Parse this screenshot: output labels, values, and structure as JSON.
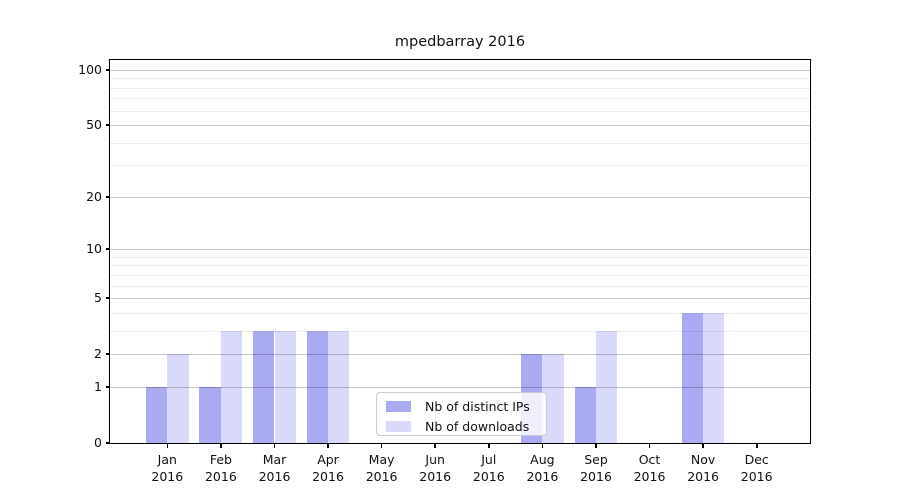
{
  "title": "mpedbarray 2016",
  "chart_data": {
    "type": "bar",
    "title": "mpedbarray 2016",
    "x_ticks": [
      {
        "month": "Jan",
        "year": "2016"
      },
      {
        "month": "Feb",
        "year": "2016"
      },
      {
        "month": "Mar",
        "year": "2016"
      },
      {
        "month": "Apr",
        "year": "2016"
      },
      {
        "month": "May",
        "year": "2016"
      },
      {
        "month": "Jun",
        "year": "2016"
      },
      {
        "month": "Jul",
        "year": "2016"
      },
      {
        "month": "Aug",
        "year": "2016"
      },
      {
        "month": "Sep",
        "year": "2016"
      },
      {
        "month": "Oct",
        "year": "2016"
      },
      {
        "month": "Nov",
        "year": "2016"
      },
      {
        "month": "Dec",
        "year": "2016"
      }
    ],
    "series": [
      {
        "name": "Nb of distinct IPs",
        "color": "#aaaaf2",
        "values": [
          1,
          1,
          3,
          3,
          0,
          0,
          0,
          2,
          1,
          0,
          4,
          0
        ]
      },
      {
        "name": "Nb of downloads",
        "color": "#d9d9f9",
        "values": [
          2,
          3,
          3,
          3,
          0,
          0,
          0,
          2,
          3,
          0,
          4,
          0
        ]
      }
    ],
    "yscale": "log1p",
    "ylim": [
      0,
      113
    ],
    "y_major_ticks": [
      {
        "label": "0",
        "value": 0
      },
      {
        "label": "1",
        "value": 1
      },
      {
        "label": "2",
        "value": 2
      },
      {
        "label": "5",
        "value": 5
      },
      {
        "label": "10",
        "value": 10
      },
      {
        "label": "20",
        "value": 20
      },
      {
        "label": "50",
        "value": 50
      },
      {
        "label": "100",
        "value": 100
      }
    ],
    "y_minor_ticks": [
      3,
      4,
      6,
      7,
      8,
      9,
      30,
      40,
      60,
      70,
      80,
      90
    ],
    "grid": true,
    "legend_position": "lower center"
  }
}
